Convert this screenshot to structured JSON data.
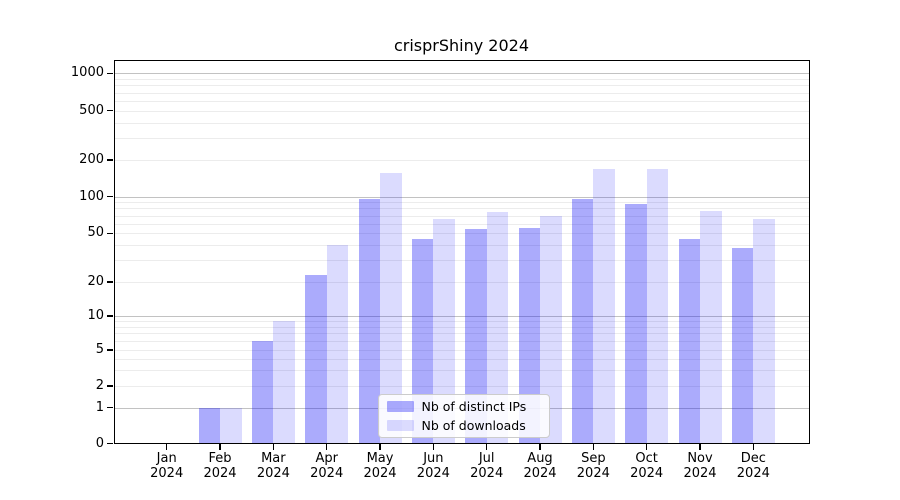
{
  "title": "crisprShiny 2024",
  "legend": {
    "items": [
      {
        "label": "Nb of distinct IPs",
        "color": "rgba(15,15,245,0.35)"
      },
      {
        "label": "Nb of downloads",
        "color": "rgba(15,15,245,0.15)"
      }
    ]
  },
  "y_axis": {
    "tick_values": [
      0,
      1,
      2,
      5,
      10,
      20,
      50,
      100,
      200,
      500,
      1000
    ],
    "tick_labels": [
      "0",
      "1",
      "2",
      "5",
      "10",
      "20",
      "50",
      "100",
      "200",
      "500",
      "1000"
    ]
  },
  "x_axis": {
    "months": [
      "Jan",
      "Feb",
      "Mar",
      "Apr",
      "May",
      "Jun",
      "Jul",
      "Aug",
      "Sep",
      "Oct",
      "Nov",
      "Dec"
    ],
    "year": "2024"
  },
  "colors": {
    "ips_bar": "rgba(15,15,245,0.35)",
    "downloads_bar": "rgba(15,15,245,0.15)",
    "grid_major": "#c2c2c2",
    "grid_minor": "#ececec",
    "spine": "#000000"
  },
  "chart_data": {
    "type": "bar",
    "title": "crisprShiny 2024",
    "categories": [
      "Jan 2024",
      "Feb 2024",
      "Mar 2024",
      "Apr 2024",
      "May 2024",
      "Jun 2024",
      "Jul 2024",
      "Aug 2024",
      "Sep 2024",
      "Oct 2024",
      "Nov 2024",
      "Dec 2024"
    ],
    "series": [
      {
        "name": "Nb of distinct IPs",
        "values": [
          0,
          1,
          6,
          23,
          95,
          45,
          54,
          55,
          95,
          87,
          45,
          38
        ]
      },
      {
        "name": "Nb of downloads",
        "values": [
          0,
          1,
          9,
          40,
          155,
          65,
          75,
          70,
          170,
          170,
          77,
          66
        ]
      }
    ],
    "xlabel": "",
    "ylabel": "",
    "yscale": "symlog",
    "y_ticks": [
      0,
      1,
      2,
      5,
      10,
      20,
      50,
      100,
      200,
      500,
      1000
    ],
    "ylim": [
      0,
      1400
    ],
    "grid": true,
    "legend_position": "lower center"
  }
}
